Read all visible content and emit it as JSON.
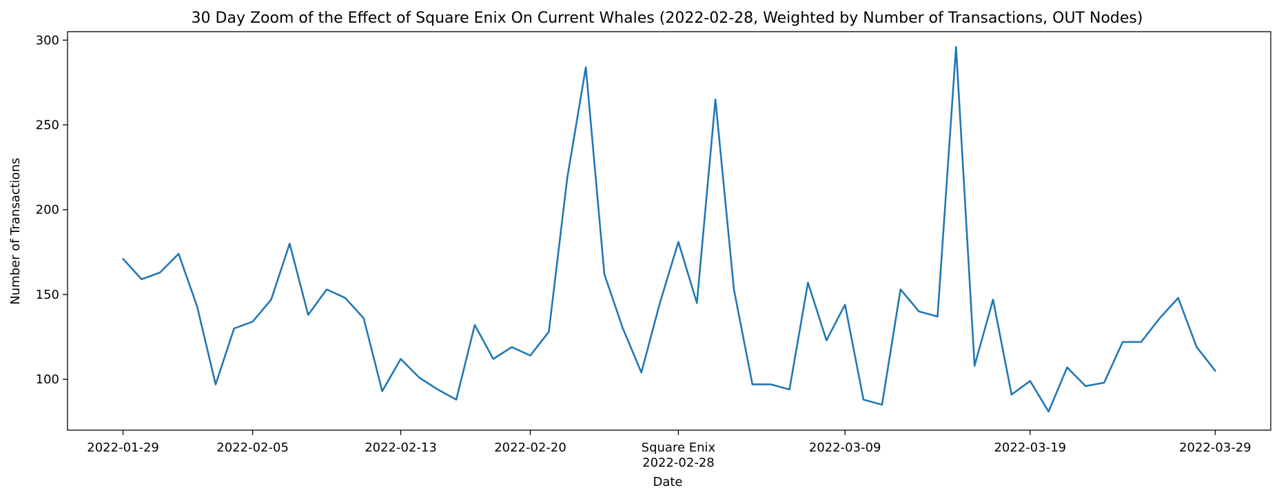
{
  "chart_data": {
    "type": "line",
    "title": "30 Day Zoom of the Effect of Square Enix On Current Whales (2022-02-28, Weighted by Number of Transactions, OUT Nodes)",
    "xlabel": "Date",
    "ylabel": "Number of Transactions",
    "xlim": [
      "2022-01-26",
      "2022-04-01"
    ],
    "ylim": [
      70,
      305
    ],
    "grid": false,
    "line_color": "#1f77b4",
    "x_ticks": [
      "2022-01-29",
      "2022-02-05",
      "2022-02-13",
      "2022-02-20",
      "2022-02-28",
      "2022-03-09",
      "2022-03-19",
      "2022-03-29"
    ],
    "x_tick_labels": [
      "2022-01-29",
      "2022-02-05",
      "2022-02-13",
      "2022-02-20",
      "2022-02-28",
      "2022-03-09",
      "2022-03-19",
      "2022-03-29"
    ],
    "event_marker": {
      "label": "Square Enix",
      "date": "2022-02-28"
    },
    "y_ticks": [
      100,
      150,
      200,
      250,
      300
    ],
    "series": [
      {
        "x": [
          "2022-01-29",
          "2022-01-30",
          "2022-01-31",
          "2022-02-01",
          "2022-02-02",
          "2022-02-03",
          "2022-02-04",
          "2022-02-05",
          "2022-02-06",
          "2022-02-07",
          "2022-02-08",
          "2022-02-09",
          "2022-02-10",
          "2022-02-11",
          "2022-02-12",
          "2022-02-13",
          "2022-02-14",
          "2022-02-15",
          "2022-02-16",
          "2022-02-17",
          "2022-02-18",
          "2022-02-19",
          "2022-02-20",
          "2022-02-21",
          "2022-02-22",
          "2022-02-23",
          "2022-02-24",
          "2022-02-25",
          "2022-02-26",
          "2022-02-27",
          "2022-02-28",
          "2022-03-01",
          "2022-03-02",
          "2022-03-03",
          "2022-03-04",
          "2022-03-05",
          "2022-03-06",
          "2022-03-07",
          "2022-03-08",
          "2022-03-09",
          "2022-03-10",
          "2022-03-11",
          "2022-03-12",
          "2022-03-13",
          "2022-03-14",
          "2022-03-15",
          "2022-03-16",
          "2022-03-17",
          "2022-03-18",
          "2022-03-19",
          "2022-03-20",
          "2022-03-21",
          "2022-03-22",
          "2022-03-23",
          "2022-03-24",
          "2022-03-25",
          "2022-03-26",
          "2022-03-27",
          "2022-03-28",
          "2022-03-29"
        ],
        "values": [
          171,
          159,
          163,
          174,
          143,
          97,
          130,
          134,
          147,
          180,
          138,
          153,
          148,
          136,
          93,
          112,
          101,
          94,
          88,
          132,
          112,
          119,
          114,
          128,
          219,
          284,
          162,
          130,
          104,
          145,
          181,
          145,
          265,
          153,
          97,
          97,
          94,
          157,
          123,
          144,
          88,
          85,
          153,
          140,
          137,
          296,
          108,
          147,
          91,
          99,
          81,
          107,
          96,
          98,
          122,
          122,
          136,
          148,
          119,
          105
        ]
      }
    ]
  }
}
